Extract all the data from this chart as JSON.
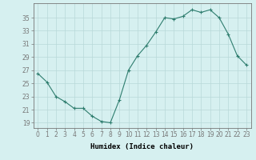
{
  "x": [
    0,
    1,
    2,
    3,
    4,
    5,
    6,
    7,
    8,
    9,
    10,
    11,
    12,
    13,
    14,
    15,
    16,
    17,
    18,
    19,
    20,
    21,
    22,
    23
  ],
  "y": [
    26.5,
    25.2,
    23.0,
    22.2,
    21.2,
    21.2,
    20.0,
    19.2,
    19.0,
    22.5,
    27.0,
    29.2,
    30.8,
    32.8,
    35.0,
    34.8,
    35.2,
    36.2,
    35.8,
    36.2,
    35.0,
    32.5,
    29.2,
    27.8
  ],
  "line_color": "#2E7D6E",
  "marker": "+",
  "marker_size": 3,
  "bg_color": "#D6F0F0",
  "grid_color": "#B8D8D8",
  "axis_color": "#777777",
  "xlabel": "Humidex (Indice chaleur)",
  "yticks": [
    19,
    21,
    23,
    25,
    27,
    29,
    31,
    33,
    35
  ],
  "ylim": [
    18.2,
    37.2
  ],
  "xlim": [
    -0.5,
    23.5
  ],
  "label_fontsize": 6.5,
  "tick_fontsize": 5.5
}
